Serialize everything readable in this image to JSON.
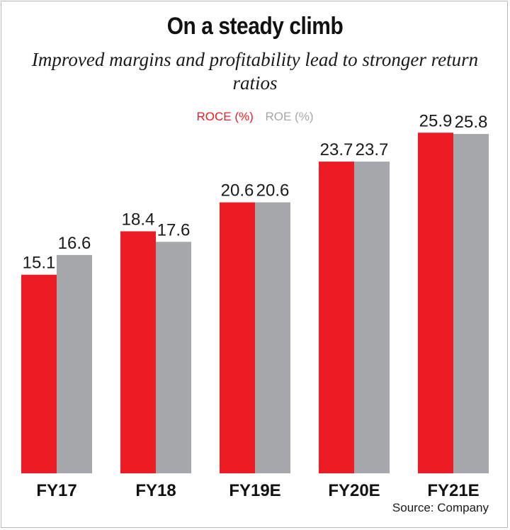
{
  "chart_data": {
    "type": "bar",
    "title": "On a steady climb",
    "subtitle": "Improved margins and profitability lead to stronger return ratios",
    "categories": [
      "FY17",
      "FY18",
      "FY19E",
      "FY20E",
      "FY21E"
    ],
    "series": [
      {
        "name": "ROCE (%)",
        "values": [
          15.1,
          18.4,
          20.6,
          23.7,
          25.9
        ],
        "color": "#ec1c24"
      },
      {
        "name": "ROE (%)",
        "values": [
          16.6,
          17.6,
          20.6,
          23.7,
          25.8
        ],
        "color": "#a6a7aa"
      }
    ],
    "value_labels": {
      "ROCE (%)": [
        "15.1",
        "18.4",
        "20.6",
        "23.7",
        "25.9"
      ],
      "ROE (%)": [
        "16.6",
        "17.6",
        "20.6",
        "23.7",
        "25.8"
      ]
    },
    "ylim": [
      0,
      29.2
    ],
    "grid": false,
    "legend_position": "top-center",
    "source": "Source: Company"
  }
}
